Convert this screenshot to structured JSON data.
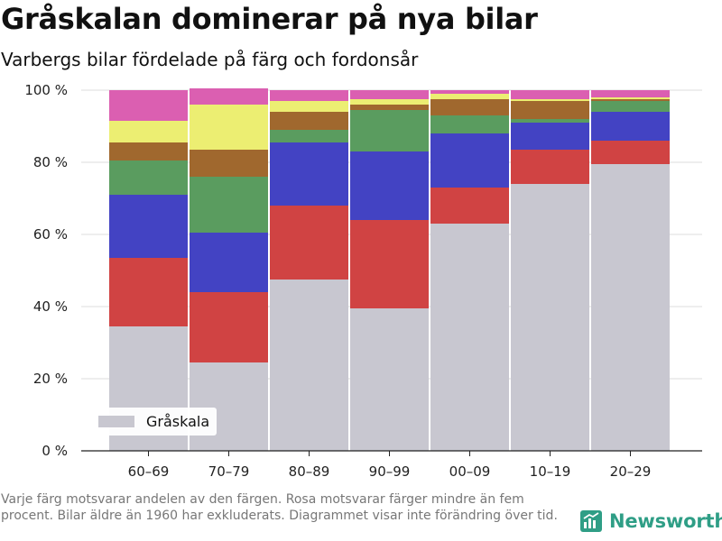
{
  "title": "Gråskalan dominerar på nya bilar",
  "subtitle": "Varbergs bilar fördelade på färg och fordonsår",
  "footnote": "Varje färg motsvarar andelen av den färgen. Rosa motsvarar färger mindre än fem procent. Bilar äldre än 1960 har exkluderats. Diagrammet visar inte förändring över tid.",
  "brand": {
    "name": "Newsworthy",
    "icon": "newsworthy-logo-icon",
    "color": "#2f9e86"
  },
  "legend": [
    {
      "label": "Gråskala",
      "color": "#c8c7d0"
    }
  ],
  "chart_data": {
    "type": "bar",
    "stacked": true,
    "categories": [
      "60–69",
      "70–79",
      "80–89",
      "90–99",
      "00–09",
      "10–19",
      "20–29"
    ],
    "y_ticks": [
      "0 %",
      "20 %",
      "40 %",
      "60 %",
      "80 %",
      "100 %"
    ],
    "ylim": [
      0,
      100
    ],
    "grid": true,
    "legend_position": "bottom-left",
    "series": [
      {
        "name": "Gråskala",
        "color": "#c8c7d0",
        "values": [
          34.5,
          24.5,
          47.5,
          39.5,
          63,
          74,
          79.5
        ]
      },
      {
        "color": "#d04343",
        "values": [
          19,
          19.5,
          20.5,
          24.5,
          10,
          9.5,
          6.5
        ]
      },
      {
        "color": "#4343c3",
        "values": [
          17.5,
          16.5,
          17.5,
          19,
          15,
          7.5,
          8
        ]
      },
      {
        "color": "#5a9c5f",
        "values": [
          9.5,
          15.5,
          3.5,
          11.5,
          5,
          1,
          3
        ]
      },
      {
        "color": "#a0682e",
        "values": [
          5,
          7.5,
          5,
          1.5,
          4.5,
          5,
          0.5
        ]
      },
      {
        "color": "#ecee72",
        "values": [
          6,
          12.5,
          3,
          1.5,
          1.5,
          0.5,
          0.5
        ]
      },
      {
        "color": "#db5fb1",
        "values": [
          8.5,
          4.5,
          3,
          2.5,
          1,
          2.5,
          2
        ]
      }
    ]
  }
}
